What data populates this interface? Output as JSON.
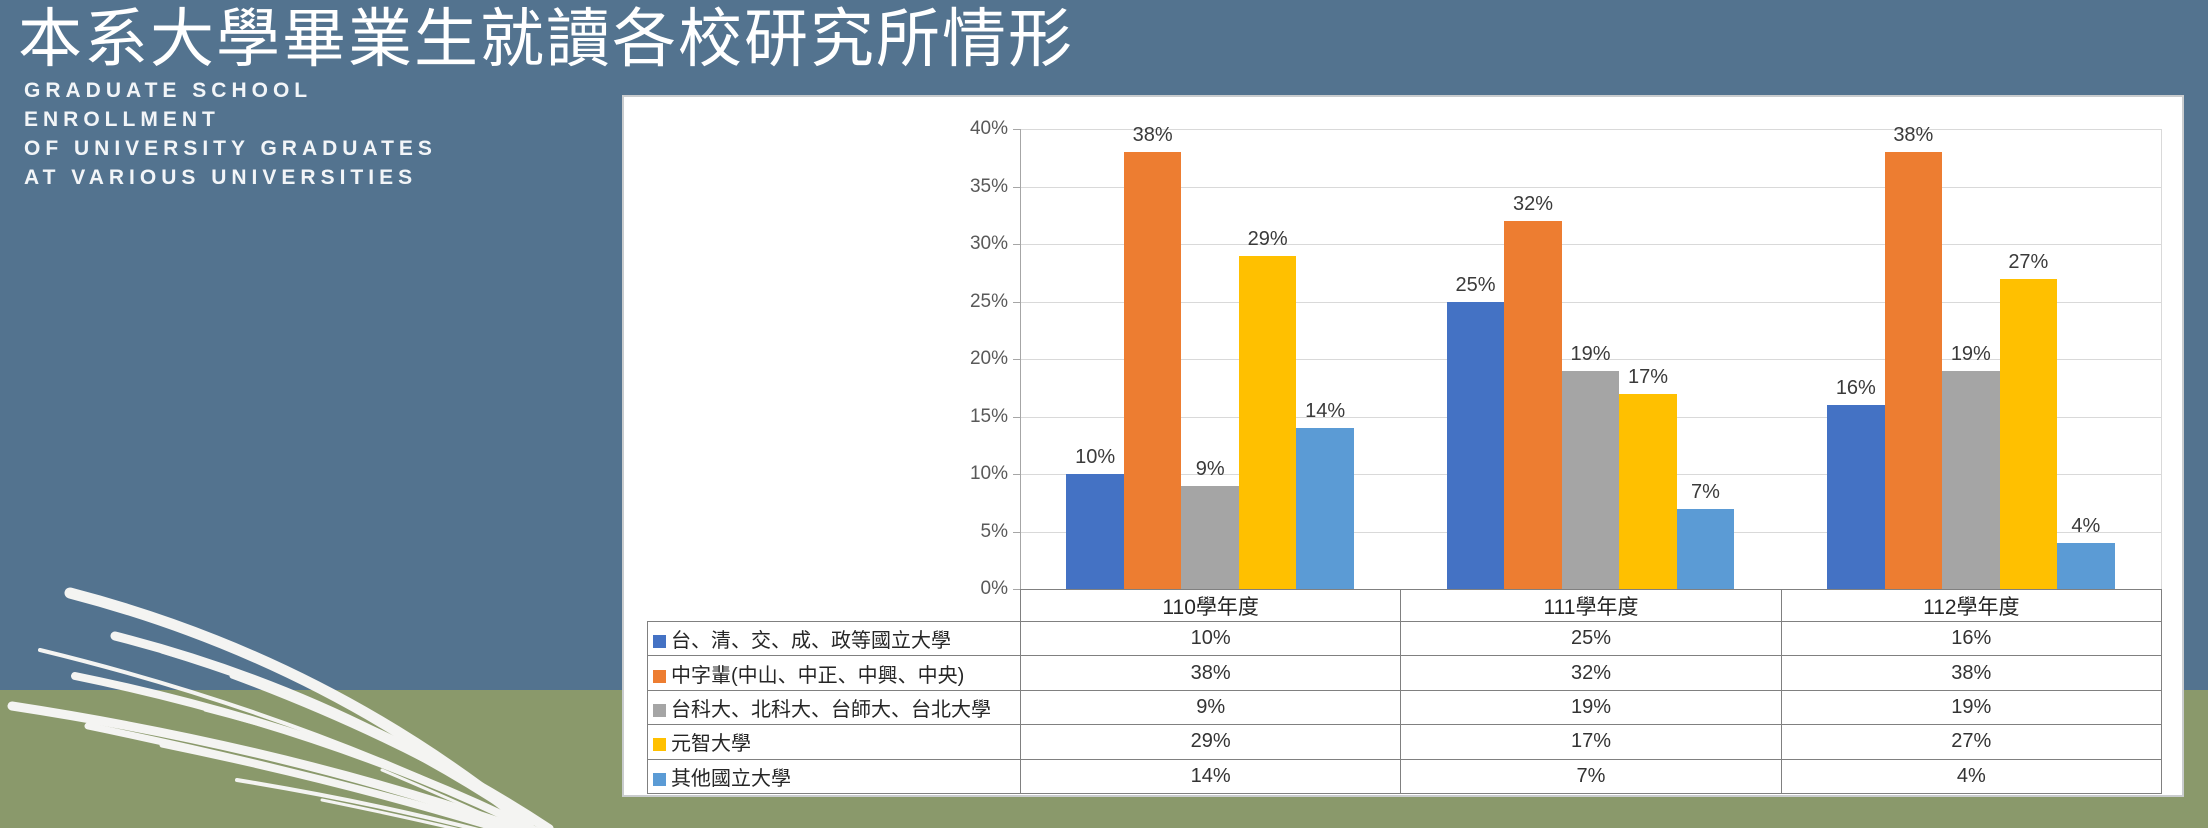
{
  "slide": {
    "title": "本系大學畢業生就讀各校研究所情形",
    "subtitle_lines": [
      "GRADUATE SCHOOL",
      "ENROLLMENT",
      "OF UNIVERSITY GRADUATES",
      "AT VARIOUS UNIVERSITIES"
    ],
    "colors": {
      "background_top": "#53738F",
      "background_bottom": "#8A996B",
      "panel": "#FFFFFF",
      "grass": "#F4F4F2"
    }
  },
  "chart_data": {
    "type": "bar",
    "categories": [
      "110學年度",
      "111學年度",
      "112學年度"
    ],
    "series": [
      {
        "name": "台、清、交、成、政等國立大學",
        "color": "#4472C4",
        "values": [
          10,
          25,
          16
        ],
        "labels": [
          "10%",
          "25%",
          "16%"
        ]
      },
      {
        "name": "中字輩(中山、中正、中興、中央)",
        "color": "#ED7D31",
        "values": [
          38,
          32,
          38
        ],
        "labels": [
          "38%",
          "32%",
          "38%"
        ]
      },
      {
        "name": "台科大、北科大、台師大、台北大學",
        "color": "#A5A5A5",
        "values": [
          9,
          19,
          19
        ],
        "labels": [
          "9%",
          "19%",
          "19%"
        ]
      },
      {
        "name": "元智大學",
        "color": "#FFC000",
        "values": [
          29,
          17,
          27
        ],
        "labels": [
          "29%",
          "17%",
          "27%"
        ]
      },
      {
        "name": "其他國立大學",
        "color": "#5B9BD5",
        "values": [
          14,
          7,
          4
        ],
        "labels": [
          "14%",
          "7%",
          "4%"
        ]
      }
    ],
    "ylim": [
      0,
      40
    ],
    "ytick_step": 5,
    "ytick_labels": [
      "0%",
      "5%",
      "10%",
      "15%",
      "20%",
      "25%",
      "30%",
      "35%",
      "40%"
    ],
    "grid": true,
    "data_labels": true,
    "legend_position": "table-left-column"
  }
}
